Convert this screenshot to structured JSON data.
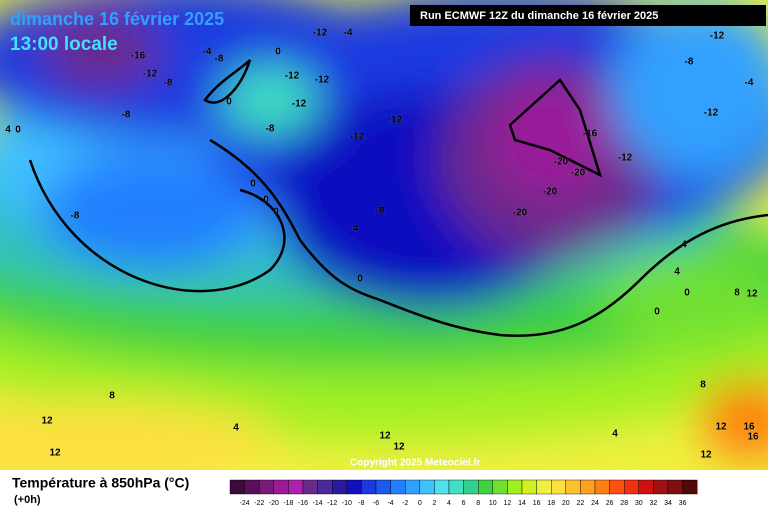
{
  "header": {
    "title": "dimanche 16 février 2025",
    "time": "13:00 locale",
    "run": "Run ECMWF 12Z du dimanche 16 février 2025"
  },
  "map": {
    "copyright": "Copyright 2025 Meteociel.fr",
    "contour_labels": [
      -12,
      -4,
      -16,
      -4,
      -8,
      0,
      -12,
      -8,
      -12,
      -12,
      0,
      -8,
      -12,
      -8,
      -12,
      -12,
      -16,
      -12,
      -20,
      -20,
      -20,
      -20,
      -8,
      -8,
      0,
      0,
      0,
      -4,
      0,
      -12,
      -8,
      -4,
      -12,
      4,
      4,
      0,
      0,
      8,
      12,
      8,
      8,
      12,
      4,
      12,
      12,
      12,
      12,
      12,
      16,
      16,
      4,
      4,
      0
    ]
  },
  "legend": {
    "title": "Température à 850hPa (°C)",
    "lead": "(+0h)",
    "ticks": [
      -24,
      -22,
      -20,
      -18,
      -16,
      -14,
      -12,
      -10,
      -8,
      -6,
      -4,
      -2,
      0,
      2,
      4,
      6,
      8,
      10,
      12,
      14,
      16,
      18,
      20,
      22,
      24,
      26,
      28,
      30,
      32,
      34,
      36
    ],
    "colors": [
      "#3a0a3a",
      "#5a0f5a",
      "#7a1a7a",
      "#9a1a9a",
      "#b020b0",
      "#6a2a8a",
      "#4a2a9a",
      "#2a1aa0",
      "#1010c0",
      "#1a3ae0",
      "#1a5af0",
      "#2080ff",
      "#30a0ff",
      "#40c0ff",
      "#50e0f0",
      "#40e0c0",
      "#30d090",
      "#40d040",
      "#70e030",
      "#a0f020",
      "#d0f020",
      "#f0f040",
      "#ffe040",
      "#ffc030",
      "#ffa020",
      "#ff8010",
      "#ff5010",
      "#f03010",
      "#d01010",
      "#a01010",
      "#801010",
      "#500808"
    ]
  }
}
